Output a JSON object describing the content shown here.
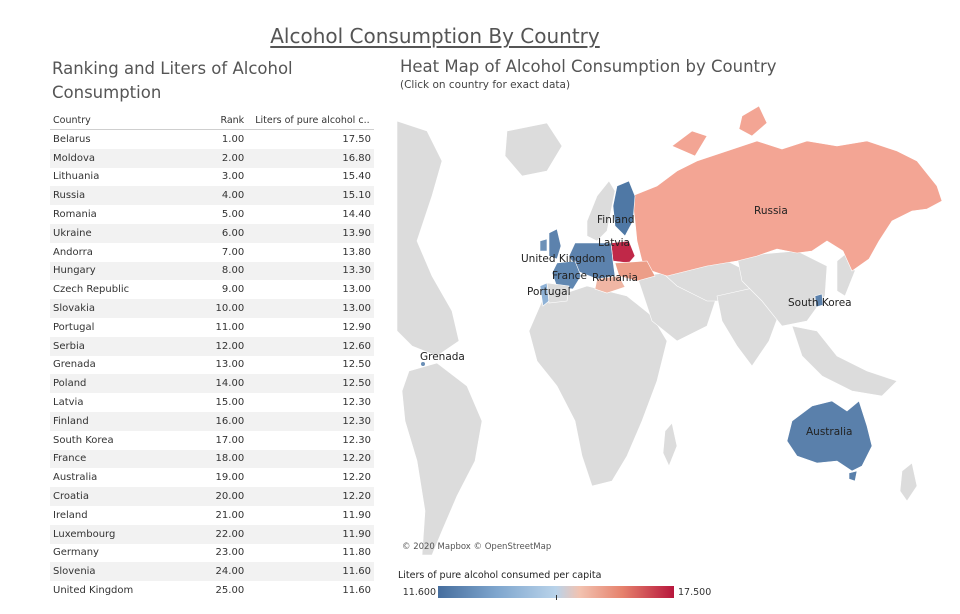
{
  "page_title": "Alcohol Consumption By Country",
  "table": {
    "title": "Ranking and Liters of Alcohol Consumption",
    "headers": {
      "country": "Country",
      "rank": "Rank",
      "liters": "Liters of pure alcohol c.."
    },
    "rows": [
      {
        "country": "Belarus",
        "rank": "1.00",
        "liters": "17.50"
      },
      {
        "country": "Moldova",
        "rank": "2.00",
        "liters": "16.80"
      },
      {
        "country": "Lithuania",
        "rank": "3.00",
        "liters": "15.40"
      },
      {
        "country": "Russia",
        "rank": "4.00",
        "liters": "15.10"
      },
      {
        "country": "Romania",
        "rank": "5.00",
        "liters": "14.40"
      },
      {
        "country": "Ukraine",
        "rank": "6.00",
        "liters": "13.90"
      },
      {
        "country": "Andorra",
        "rank": "7.00",
        "liters": "13.80"
      },
      {
        "country": "Hungary",
        "rank": "8.00",
        "liters": "13.30"
      },
      {
        "country": "Czech Republic",
        "rank": "9.00",
        "liters": "13.00"
      },
      {
        "country": "Slovakia",
        "rank": "10.00",
        "liters": "13.00"
      },
      {
        "country": "Portugal",
        "rank": "11.00",
        "liters": "12.90"
      },
      {
        "country": "Serbia",
        "rank": "12.00",
        "liters": "12.60"
      },
      {
        "country": "Grenada",
        "rank": "13.00",
        "liters": "12.50"
      },
      {
        "country": "Poland",
        "rank": "14.00",
        "liters": "12.50"
      },
      {
        "country": "Latvia",
        "rank": "15.00",
        "liters": "12.30"
      },
      {
        "country": "Finland",
        "rank": "16.00",
        "liters": "12.30"
      },
      {
        "country": "South Korea",
        "rank": "17.00",
        "liters": "12.30"
      },
      {
        "country": "France",
        "rank": "18.00",
        "liters": "12.20"
      },
      {
        "country": "Australia",
        "rank": "19.00",
        "liters": "12.20"
      },
      {
        "country": "Croatia",
        "rank": "20.00",
        "liters": "12.20"
      },
      {
        "country": "Ireland",
        "rank": "21.00",
        "liters": "11.90"
      },
      {
        "country": "Luxembourg",
        "rank": "22.00",
        "liters": "11.90"
      },
      {
        "country": "Germany",
        "rank": "23.00",
        "liters": "11.80"
      },
      {
        "country": "Slovenia",
        "rank": "24.00",
        "liters": "11.60"
      },
      {
        "country": "United Kingdom",
        "rank": "25.00",
        "liters": "11.60"
      }
    ]
  },
  "map": {
    "title": "Heat Map of Alcohol Consumption by Country",
    "subtitle": "(Click on country for exact data)",
    "attribution": "© 2020 Mapbox © OpenStreetMap",
    "labels": {
      "russia": "Russia",
      "finland": "Finland",
      "latvia": "Latvia",
      "united_kingdom": "United Kingdom",
      "france": "France",
      "romania": "Romania",
      "portugal": "Portugal",
      "south_korea": "South Korea",
      "grenada": "Grenada",
      "australia": "Australia"
    }
  },
  "legend": {
    "title": "Liters of pure alcohol consumed per capita",
    "min": "11.600",
    "max": "17.500"
  },
  "colors": {
    "low": "#466e9e",
    "mid_low": "#b9d3ea",
    "mid_high": "#f2a890",
    "high": "#b7163c",
    "no_data": "#dcdcdc"
  },
  "chart_data": {
    "type": "table",
    "title": "Ranking and Liters of Alcohol Consumption",
    "columns": [
      "Country",
      "Rank",
      "Liters of pure alcohol c.."
    ],
    "categories": [
      "Belarus",
      "Moldova",
      "Lithuania",
      "Russia",
      "Romania",
      "Ukraine",
      "Andorra",
      "Hungary",
      "Czech Republic",
      "Slovakia",
      "Portugal",
      "Serbia",
      "Grenada",
      "Poland",
      "Latvia",
      "Finland",
      "South Korea",
      "France",
      "Australia",
      "Croatia",
      "Ireland",
      "Luxembourg",
      "Germany",
      "Slovenia",
      "United Kingdom"
    ],
    "ranks": [
      1,
      2,
      3,
      4,
      5,
      6,
      7,
      8,
      9,
      10,
      11,
      12,
      13,
      14,
      15,
      16,
      17,
      18,
      19,
      20,
      21,
      22,
      23,
      24,
      25
    ],
    "values": [
      17.5,
      16.8,
      15.4,
      15.1,
      14.4,
      13.9,
      13.8,
      13.3,
      13.0,
      13.0,
      12.9,
      12.6,
      12.5,
      12.5,
      12.3,
      12.3,
      12.3,
      12.2,
      12.2,
      12.2,
      11.9,
      11.9,
      11.8,
      11.6,
      11.6
    ],
    "color_scale_range": [
      11.6,
      17.5
    ]
  }
}
